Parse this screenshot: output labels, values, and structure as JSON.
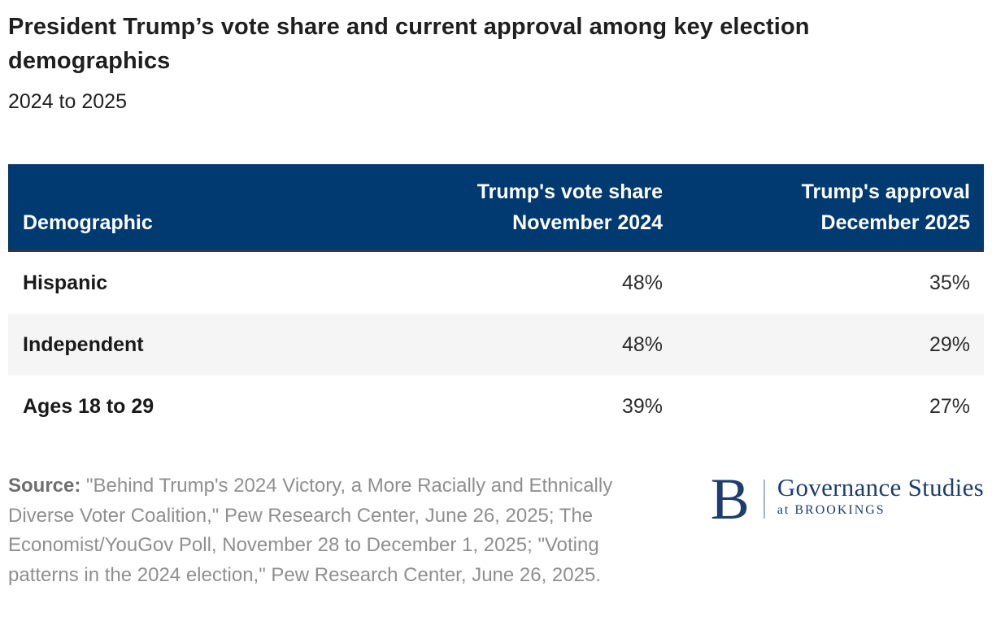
{
  "page": {
    "title": "President Trump’s vote share and current approval among key election demographics",
    "subtitle": "2024 to 2025"
  },
  "chart_data": {
    "type": "table",
    "title": "President Trump’s vote share and current approval among key election demographics",
    "subtitle": "2024 to 2025",
    "columns": [
      "Demographic",
      "Trump's vote share November 2024",
      "Trump's approval December 2025"
    ],
    "rows": [
      {
        "demographic": "Hispanic",
        "vote_share": "48%",
        "approval": "35%"
      },
      {
        "demographic": "Independent",
        "vote_share": "48%",
        "approval": "29%"
      },
      {
        "demographic": "Ages 18 to 29",
        "vote_share": "39%",
        "approval": "27%"
      }
    ],
    "vote_share_values": [
      48,
      48,
      39
    ],
    "approval_values": [
      35,
      29,
      27
    ]
  },
  "table": {
    "header": {
      "col1": "Demographic",
      "col2": "Trump's vote share\nNovember 2024",
      "col3": "Trump's approval\nDecember 2025"
    }
  },
  "source": {
    "label": "Source:",
    "text": " \"Behind Trump's 2024 Victory, a More Racially and Ethnically Diverse Voter Coalition,\" Pew Research Center, June 26, 2025; The Economist/YouGov Poll, November 28 to December 1, 2025; \"Voting patterns in the 2024 election,\" Pew Research Center, June 26, 2025."
  },
  "logo": {
    "monogram": "B",
    "name": "Governance Studies",
    "tagline": "at BROOKINGS"
  },
  "colors": {
    "header_navy": "#003A70",
    "header_border_dark": "#363636",
    "row_alt_gray": "#F5F5F5",
    "logo_navy": "#1E3C6E",
    "source_gray": "#8F8F8F",
    "text_dark": "#1F1F1F"
  }
}
